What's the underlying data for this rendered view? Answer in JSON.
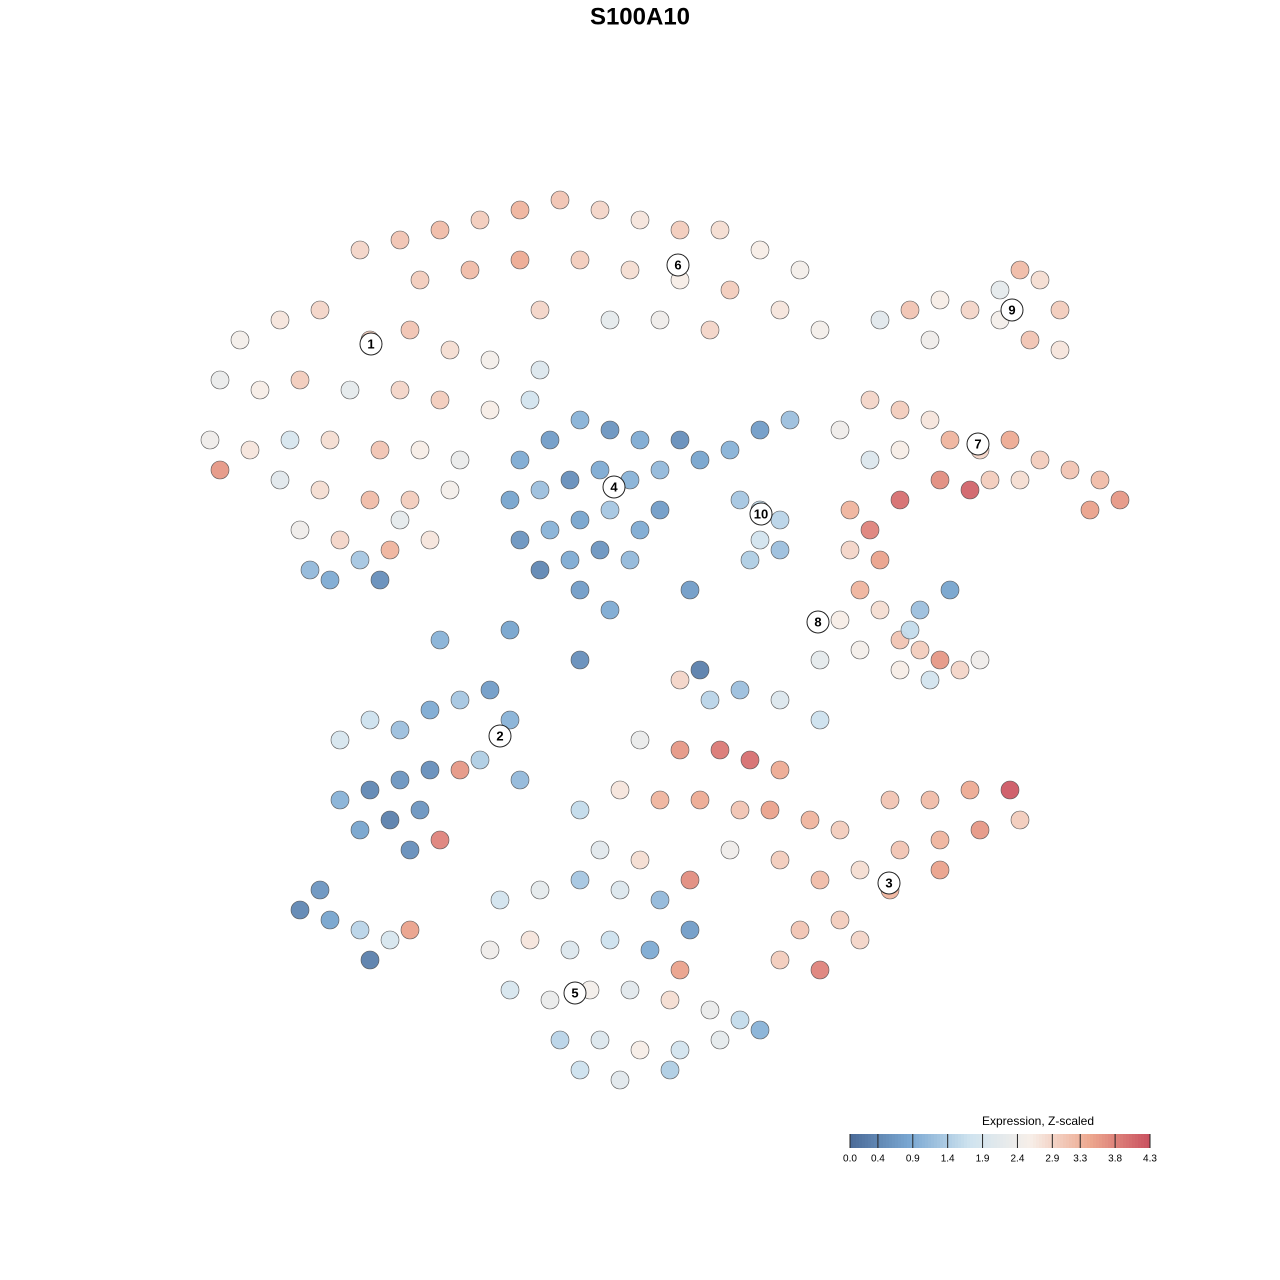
{
  "chart_data": {
    "type": "scatter",
    "title": "S100A10",
    "xlim": [
      -50,
      50
    ],
    "ylim": [
      -50,
      50
    ],
    "series": [
      {
        "x": [
          -28,
          -24,
          -20,
          -16,
          -12,
          -8,
          -4,
          0,
          4,
          8,
          12,
          16,
          -22,
          -17,
          -12,
          -6,
          -1,
          4,
          9,
          14,
          18,
          -10,
          -3,
          2,
          7,
          -40,
          -36,
          -32,
          -27,
          -23,
          -19,
          -15,
          -10,
          -42,
          -38,
          -34,
          -29,
          -24,
          -20,
          -15,
          -11,
          -43,
          -39,
          -35,
          -31,
          -26,
          -22,
          -18,
          -42,
          -36,
          -32,
          -27,
          -23,
          -19,
          -34,
          -30,
          -25,
          -21,
          -31,
          -28,
          -26,
          -33,
          -24,
          -12,
          -9,
          -6,
          -3,
          0,
          2,
          -13,
          -10,
          -7,
          -4,
          -1,
          2,
          -12,
          -9,
          -6,
          -3,
          0,
          -10,
          -7,
          -4,
          -1,
          -6,
          4,
          6,
          9,
          12,
          15,
          10,
          12,
          14,
          12,
          14,
          11,
          24,
          27,
          30,
          33,
          36,
          38,
          40,
          42,
          39,
          42,
          36,
          29,
          20,
          23,
          26,
          29,
          31,
          34,
          37,
          40,
          43,
          46,
          48,
          45,
          38,
          35,
          26,
          30,
          33,
          23,
          21,
          23,
          26,
          24,
          21,
          22,
          20,
          24,
          18,
          22,
          26,
          28,
          30,
          32,
          34,
          29,
          26,
          28,
          31,
          27,
          -30,
          -27,
          -24,
          -21,
          -18,
          -15,
          -13,
          -30,
          -27,
          -24,
          -21,
          -18,
          -28,
          -25,
          -22,
          -23,
          -20,
          -16,
          -12,
          -34,
          -32,
          -31,
          -28,
          -27,
          -25,
          -23,
          4,
          7,
          10,
          14,
          18,
          0,
          4,
          8,
          11,
          14,
          -2,
          2,
          6,
          10,
          13,
          17,
          20,
          25,
          29,
          33,
          37,
          38,
          34,
          30,
          26,
          22,
          18,
          14,
          25,
          30,
          20,
          16,
          22,
          14,
          18,
          -4,
          0,
          5,
          9,
          -6,
          -14,
          -10,
          -6,
          -2,
          2,
          5,
          -15,
          -11,
          -7,
          -3,
          1,
          4,
          -13,
          -9,
          -5,
          -1,
          3,
          7,
          10,
          -8,
          -4,
          0,
          4,
          8,
          12,
          -6,
          -2,
          3,
          -20,
          -13,
          -3,
          5,
          6,
          -6
        ],
        "y": [
          39,
          40,
          41,
          42,
          43,
          44,
          43,
          42,
          41,
          41,
          39,
          37,
          36,
          37,
          38,
          38,
          37,
          36,
          35,
          33,
          31,
          33,
          32,
          32,
          31,
          30,
          32,
          33,
          30,
          31,
          29,
          28,
          27,
          26,
          25,
          26,
          25,
          25,
          24,
          23,
          24,
          20,
          19,
          20,
          20,
          19,
          19,
          18,
          17,
          16,
          15,
          14,
          14,
          15,
          11,
          10,
          9,
          10,
          6,
          8,
          6,
          7,
          12,
          18,
          20,
          22,
          21,
          20,
          17,
          14,
          15,
          16,
          17,
          16,
          13,
          10,
          11,
          12,
          13,
          11,
          7,
          8,
          9,
          8,
          5,
          20,
          18,
          19,
          21,
          22,
          14,
          13,
          12,
          10,
          9,
          8,
          32,
          33,
          34,
          33,
          35,
          37,
          36,
          33,
          30,
          29,
          32,
          30,
          21,
          24,
          23,
          22,
          20,
          19,
          20,
          18,
          17,
          16,
          14,
          13,
          16,
          16,
          19,
          16,
          15,
          18,
          13,
          11,
          14,
          8,
          9,
          5,
          2,
          3,
          -2,
          -1,
          0,
          -1,
          -2,
          -3,
          -2,
          -4,
          -3,
          3,
          5,
          1,
          -10,
          -8,
          -9,
          -7,
          -6,
          -5,
          -8,
          -16,
          -15,
          -14,
          -13,
          -13,
          -19,
          -18,
          -17,
          -21,
          -20,
          -12,
          -14,
          -27,
          -25,
          -28,
          -29,
          -32,
          -30,
          -29,
          -4,
          -6,
          -5,
          -6,
          -8,
          -10,
          -11,
          -11,
          -12,
          -13,
          -15,
          -16,
          -16,
          -17,
          -17,
          -18,
          -19,
          -16,
          -16,
          -15,
          -15,
          -18,
          -19,
          -20,
          -21,
          -23,
          -24,
          -22,
          -25,
          -23,
          -28,
          -29,
          -30,
          -32,
          -33,
          -21,
          -22,
          -24,
          -21,
          -17,
          -26,
          -25,
          -24,
          -25,
          -26,
          -29,
          -31,
          -30,
          -31,
          -30,
          -31,
          -33,
          -35,
          -36,
          -35,
          -35,
          -36,
          -37,
          -38,
          -40,
          -40,
          -41,
          -41,
          -40,
          -39,
          -43,
          -44,
          -43,
          0,
          1,
          3,
          5,
          -3,
          -2
        ],
        "values": [
          2.9,
          3.1,
          3.2,
          3.0,
          3.3,
          3.1,
          2.9,
          2.7,
          3.0,
          2.8,
          2.6,
          2.5,
          3.0,
          3.2,
          3.4,
          3.0,
          2.8,
          2.6,
          3.0,
          2.7,
          2.5,
          2.9,
          2.2,
          2.4,
          2.9,
          2.5,
          2.7,
          2.9,
          3.0,
          3.1,
          2.8,
          2.5,
          2.0,
          2.3,
          2.6,
          3.0,
          2.2,
          2.9,
          3.0,
          2.6,
          1.8,
          2.4,
          2.7,
          1.9,
          2.8,
          3.1,
          2.6,
          2.3,
          3.6,
          2.1,
          2.8,
          3.2,
          3.0,
          2.5,
          2.4,
          2.9,
          3.3,
          2.7,
          0.9,
          1.3,
          0.5,
          1.1,
          2.2,
          0.9,
          0.7,
          1.0,
          0.6,
          0.9,
          1.1,
          0.8,
          1.2,
          0.5,
          0.9,
          1.0,
          0.7,
          0.6,
          1.0,
          0.8,
          1.3,
          0.9,
          0.4,
          0.9,
          0.6,
          1.1,
          0.7,
          0.5,
          0.8,
          1.0,
          0.7,
          1.2,
          1.3,
          1.6,
          1.5,
          1.8,
          1.2,
          1.4,
          2.1,
          3.1,
          2.6,
          2.9,
          2.2,
          3.2,
          2.8,
          3.0,
          3.1,
          2.7,
          2.5,
          2.4,
          2.4,
          2.9,
          3.0,
          2.7,
          3.3,
          2.9,
          3.4,
          3.0,
          3.1,
          3.2,
          3.6,
          3.5,
          2.8,
          3.0,
          2.6,
          3.7,
          4.1,
          2.0,
          3.3,
          3.8,
          4.0,
          3.5,
          2.9,
          3.3,
          2.6,
          2.8,
          2.2,
          2.5,
          3.1,
          3.0,
          3.6,
          2.9,
          2.4,
          1.8,
          2.6,
          1.2,
          0.8,
          1.6,
          1.9,
          1.7,
          1.2,
          0.9,
          1.3,
          0.7,
          1.0,
          1.0,
          0.4,
          0.6,
          0.5,
          3.6,
          0.8,
          0.3,
          0.6,
          0.5,
          3.8,
          1.4,
          1.1,
          0.4,
          0.6,
          0.8,
          1.5,
          0.3,
          1.9,
          3.5,
          2.9,
          1.5,
          1.2,
          2.0,
          1.7,
          2.3,
          3.6,
          3.9,
          4.0,
          3.4,
          2.7,
          3.3,
          3.4,
          3.1,
          3.5,
          3.3,
          3.0,
          3.1,
          3.2,
          3.4,
          4.2,
          3.0,
          3.6,
          3.3,
          3.1,
          2.8,
          3.2,
          3.0,
          3.3,
          3.5,
          3.0,
          3.1,
          2.9,
          3.0,
          3.8,
          2.1,
          2.8,
          3.7,
          2.4,
          1.6,
          1.8,
          2.2,
          1.3,
          2.0,
          1.1,
          0.7,
          2.4,
          2.7,
          2.0,
          1.7,
          0.9,
          3.5,
          1.9,
          2.3,
          2.5,
          2.1,
          2.8,
          2.3,
          1.6,
          1.5,
          2.0,
          2.6,
          1.8,
          2.2,
          1.0,
          1.7,
          2.1,
          1.4,
          1.0,
          0.8,
          0.9,
          0.7,
          0.3,
          0.5
        ]
      }
    ],
    "clusters": [
      {
        "label": "1",
        "x": -26.9,
        "y": 29.6
      },
      {
        "label": "2",
        "x": -14,
        "y": -9.6
      },
      {
        "label": "3",
        "x": 24.9,
        "y": -24.3
      },
      {
        "label": "4",
        "x": -2.6,
        "y": 15.3
      },
      {
        "label": "5",
        "x": -6.5,
        "y": -35.3
      },
      {
        "label": "6",
        "x": 3.8,
        "y": 37.5
      },
      {
        "label": "7",
        "x": 33.8,
        "y": 19.6
      },
      {
        "label": "8",
        "x": 17.8,
        "y": 1.8
      },
      {
        "label": "9",
        "x": 37.2,
        "y": 33
      },
      {
        "label": "10",
        "x": 12.1,
        "y": 12.6
      }
    ],
    "colorscale": {
      "title": "Expression, Z-scaled",
      "lim": [
        0,
        4.3
      ],
      "colors": [
        "#4a6a98",
        "#7aa8d2",
        "#cfe3ef",
        "#f7efe9",
        "#eda88f",
        "#c9505f"
      ],
      "ticks": [
        {
          "value": 0,
          "label": "0.0"
        },
        0.4,
        0.9,
        1.4,
        1.9,
        2.4,
        2.9,
        3.3,
        3.8,
        4.3
      ]
    }
  }
}
